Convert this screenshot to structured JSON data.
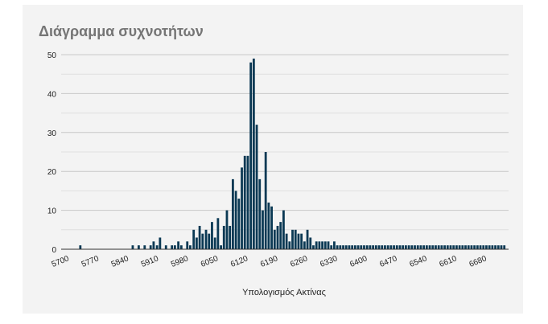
{
  "chart_data": {
    "type": "bar",
    "title": "Διάγραμμα συχνοτήτων",
    "xlabel": "Υπολογισμός Ακτίνας",
    "ylabel": "",
    "ylim": [
      0,
      50
    ],
    "yticks": [
      0,
      10,
      20,
      30,
      40,
      50
    ],
    "xlim": [
      5700,
      6750
    ],
    "xticks": [
      5700,
      5770,
      5840,
      5910,
      5980,
      6050,
      6120,
      6190,
      6260,
      6330,
      6400,
      6470,
      6540,
      6610,
      6680
    ],
    "grid": true,
    "bar_color": "#0b3954",
    "x": [
      5745,
      5868,
      5882,
      5896,
      5910,
      5917,
      5925,
      5932,
      5946,
      5960,
      5967,
      5975,
      5982,
      5996,
      6003,
      6011,
      6018,
      6025,
      6032,
      6040,
      6047,
      6054,
      6061,
      6068,
      6075,
      6082,
      6089,
      6096,
      6103,
      6110,
      6117,
      6124,
      6131,
      6138,
      6145,
      6152,
      6159,
      6166,
      6173,
      6180,
      6187,
      6194,
      6201,
      6208,
      6215,
      6222,
      6229,
      6236,
      6243,
      6250,
      6257,
      6264,
      6271,
      6278,
      6285,
      6292,
      6299,
      6306,
      6313,
      6320,
      6327,
      6334,
      6341,
      6348,
      6355,
      6362,
      6369,
      6376,
      6383,
      6390,
      6397,
      6404,
      6411,
      6418,
      6425,
      6432,
      6439,
      6446,
      6453,
      6460,
      6467,
      6474,
      6481,
      6488,
      6495,
      6502,
      6509,
      6516,
      6523,
      6530,
      6537,
      6544,
      6551,
      6558,
      6565,
      6572,
      6579,
      6586,
      6593,
      6600,
      6607,
      6614,
      6621,
      6628,
      6635,
      6642,
      6649,
      6656,
      6663,
      6670,
      6677,
      6684,
      6691,
      6698,
      6705,
      6712,
      6719,
      6726,
      6733,
      6740
    ],
    "values": [
      1,
      1,
      1,
      1,
      1,
      2,
      1,
      3,
      1,
      1,
      1,
      2,
      1,
      2,
      1,
      5,
      3,
      6,
      4,
      5,
      4,
      7,
      3,
      8,
      1,
      6,
      10,
      6,
      18,
      15,
      13,
      21,
      24,
      24,
      48,
      49,
      32,
      18,
      10,
      25,
      12,
      11,
      5,
      6,
      7,
      10,
      4,
      2,
      5,
      5,
      4,
      4,
      2,
      5,
      3,
      1,
      2,
      2,
      2,
      2,
      2,
      1,
      2,
      1,
      1,
      1,
      1,
      1,
      1,
      1,
      1,
      1,
      1,
      1,
      1,
      1,
      1,
      1,
      1,
      1,
      1,
      1,
      1,
      1,
      1,
      1,
      1,
      1,
      1,
      1,
      1,
      1,
      1,
      1,
      1,
      1,
      1,
      1,
      1,
      1,
      1,
      1,
      1,
      1,
      1,
      1,
      1,
      1,
      1,
      1,
      1,
      1,
      1,
      1,
      1,
      1,
      1,
      1,
      1,
      1
    ]
  }
}
